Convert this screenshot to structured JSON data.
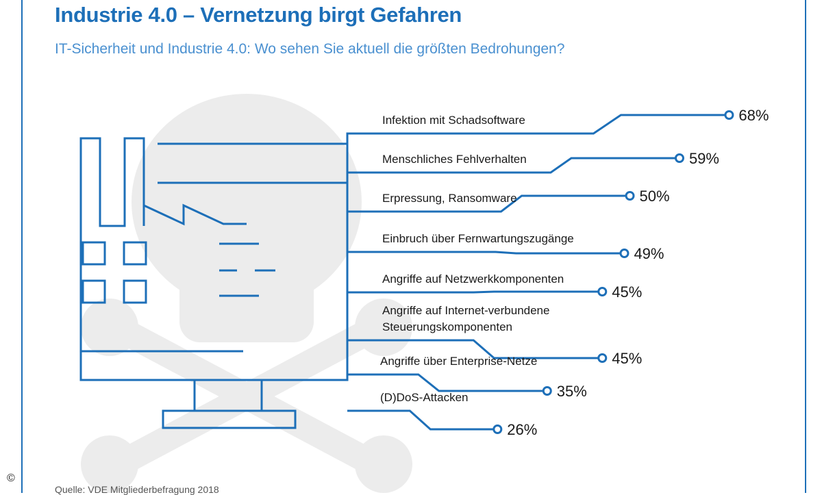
{
  "header": {
    "title": "Industrie 4.0 – Vernetzung birgt Gefahren",
    "subtitle": "IT-Sicherheit und Industrie 4.0: Wo sehen Sie aktuell die größten Bedrohungen?"
  },
  "footer": {
    "source": "Quelle: VDE Mitgliederbefragung 2018",
    "copyright": "©"
  },
  "colors": {
    "accent": "#1d6fb8",
    "skull": "#ececec",
    "text": "#1a1a1a"
  },
  "chart_data": {
    "type": "bar",
    "title": "Industrie 4.0 – Vernetzung birgt Gefahren",
    "subtitle": "IT-Sicherheit und Industrie 4.0: Wo sehen Sie aktuell die größten Bedrohungen?",
    "unit": "%",
    "categories": [
      [
        "Infektion mit Schadsoftware"
      ],
      [
        "Menschliches Fehlverhalten"
      ],
      [
        "Erpressung, Ransomware"
      ],
      [
        "Einbruch über Fernwartungszugänge"
      ],
      [
        "Angriffe auf Netzwerkkomponenten"
      ],
      [
        "Angriffe auf Internet-verbundene",
        "Steuerungskomponenten"
      ],
      [
        "Angriffe über Enterprise-Netze"
      ],
      [
        "(D)DoS-Attacken"
      ]
    ],
    "values": [
      68,
      59,
      50,
      49,
      45,
      45,
      35,
      26
    ],
    "value_labels": [
      "68%",
      "59%",
      "50%",
      "49%",
      "45%",
      "45%",
      "35%",
      "26%"
    ],
    "xlim": [
      0,
      100
    ],
    "grid": false,
    "legend": "none"
  }
}
